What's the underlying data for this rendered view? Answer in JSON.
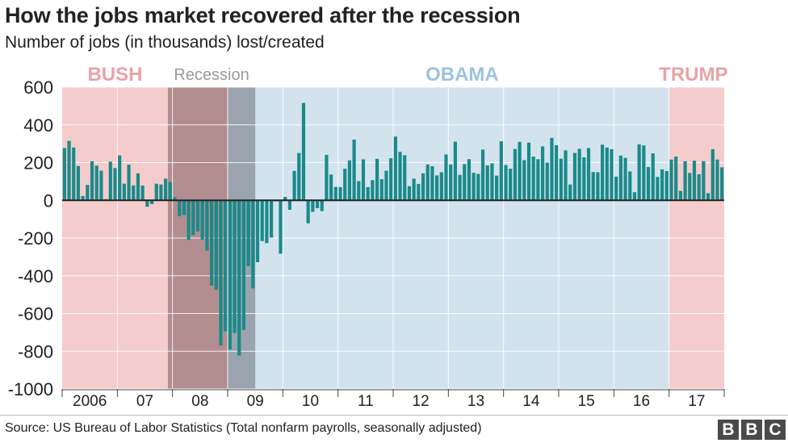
{
  "header": {
    "title": "How the jobs market recovered after the recession",
    "subtitle": "Number of jobs (in thousands) lost/created"
  },
  "footer": {
    "source": "Source: US Bureau of Labor Statistics (Total nonfarm payrolls, seasonally adjusted)",
    "logo_letters": [
      "B",
      "B",
      "C"
    ]
  },
  "chart_data": {
    "type": "bar",
    "title": "How the jobs market recovered after the recession",
    "ylabel": "Number of jobs (in thousands) lost/created",
    "ylim": [
      -1000,
      600
    ],
    "yticks": [
      "600",
      "400",
      "200",
      "0",
      "-200",
      "-400",
      "-600",
      "-800",
      "-1000"
    ],
    "ytick_values": [
      600,
      400,
      200,
      0,
      -200,
      -400,
      -600,
      -800,
      -1000
    ],
    "grid": true,
    "x_start": "2006-01",
    "x_end": "2017-12",
    "year_labels": [
      {
        "label": "2006",
        "year": 2006
      },
      {
        "label": "07",
        "year": 2007
      },
      {
        "label": "08",
        "year": 2008
      },
      {
        "label": "09",
        "year": 2009
      },
      {
        "label": "10",
        "year": 2010
      },
      {
        "label": "11",
        "year": 2011
      },
      {
        "label": "12",
        "year": 2012
      },
      {
        "label": "13",
        "year": 2013
      },
      {
        "label": "14",
        "year": 2014
      },
      {
        "label": "15",
        "year": 2015
      },
      {
        "label": "16",
        "year": 2016
      },
      {
        "label": "17",
        "year": 2017
      }
    ],
    "periods": [
      {
        "label": "BUSH",
        "start": "2006-01",
        "end": "2008-12",
        "color": "#f4cccc",
        "label_color": "#e8a3a7"
      },
      {
        "label": "OBAMA",
        "start": "2009-01",
        "end": "2017-01",
        "color": "#d3e3ee",
        "label_color": "#9cc3dd"
      },
      {
        "label": "TRUMP",
        "start": "2017-01",
        "end": "2017-12",
        "color": "#f4cccc",
        "label_color": "#e8a3a7"
      }
    ],
    "recession": {
      "label": "Recession",
      "start": "2007-12",
      "end": "2009-06",
      "label_color": "#9a9a9a",
      "color_bush": "#b28e90",
      "color_obama": "#9aa4ae"
    },
    "bar_color": "#1a8a8a",
    "series": [
      {
        "start": "2006-01",
        "values": [
          277,
          315,
          280,
          182,
          23,
          82,
          207,
          184,
          157,
          6,
          205,
          171,
          238,
          88,
          189,
          79,
          143,
          78,
          -34,
          -20,
          88,
          84,
          115,
          97,
          17,
          -84,
          -78,
          -210,
          -185,
          -165,
          -209,
          -266,
          -452,
          -473,
          -769,
          -695,
          -791,
          -703,
          -823,
          -687,
          -349,
          -467,
          -328,
          -216,
          -227,
          -198,
          -6,
          -283,
          18,
          -50,
          156,
          251,
          516,
          -122,
          -61,
          -42,
          -57,
          241,
          137,
          71,
          70,
          168,
          212,
          322,
          102,
          217,
          70,
          107,
          220,
          112,
          157,
          223,
          338,
          257,
          239,
          75,
          115,
          87,
          143,
          190,
          181,
          132,
          149,
          243,
          190,
          311,
          135,
          192,
          218,
          146,
          140,
          269,
          185,
          196,
          131,
          313,
          187,
          168,
          272,
          310,
          213,
          306,
          232,
          218,
          286,
          200,
          331,
          292,
          221,
          265,
          84,
          251,
          273,
          228,
          277,
          150,
          149,
          295,
          280,
          271,
          126,
          237,
          225,
          153,
          43,
          297,
          291,
          176,
          249,
          124,
          164,
          155,
          216,
          232,
          50,
          207,
          145,
          210,
          138,
          208,
          38,
          271,
          216,
          175
        ]
      }
    ]
  }
}
